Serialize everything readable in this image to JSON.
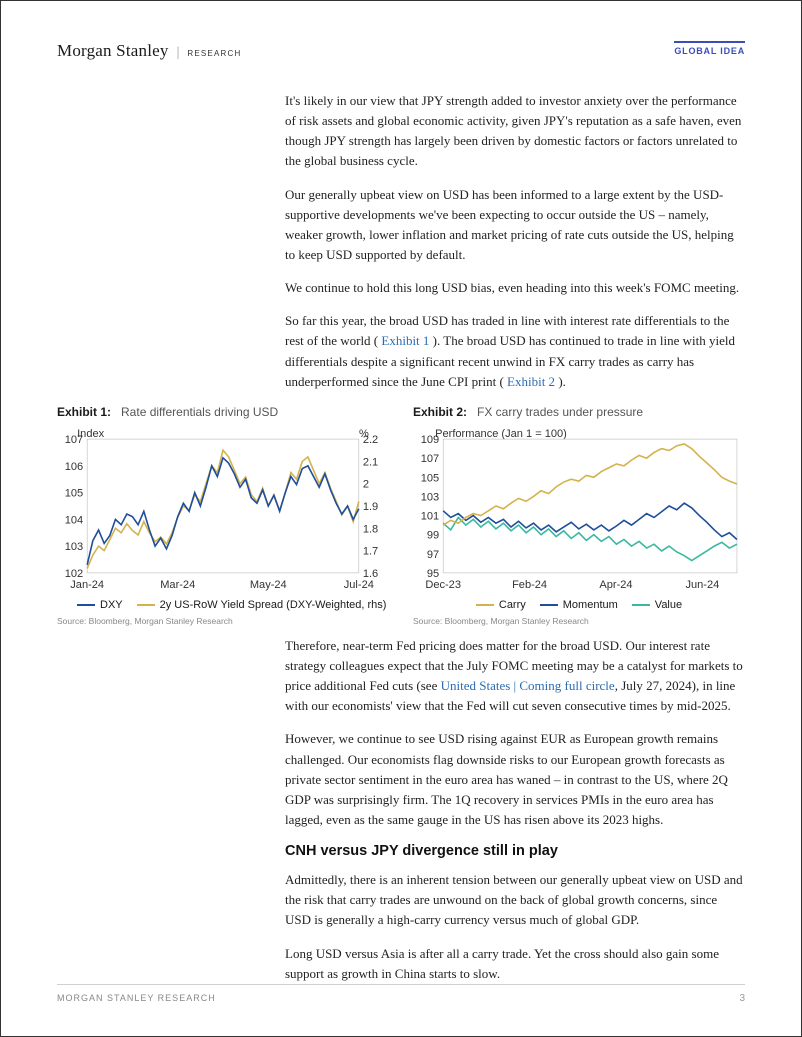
{
  "header": {
    "brand": "Morgan Stanley",
    "sub": "RESEARCH",
    "badge": "GLOBAL IDEA"
  },
  "paragraphs": {
    "p1": "It's likely in our view that JPY strength added to investor anxiety over the performance of risk assets and global economic activity, given JPY's reputation as a safe haven, even though JPY strength has largely been driven by domestic factors or factors unrelated to the global business cycle.",
    "p2": "Our generally upbeat view on USD has been informed to a large extent by the USD-supportive developments we've been expecting to occur outside the US – namely, weaker growth, lower inflation and market pricing of rate cuts outside the US, helping to keep USD supported by default.",
    "p3": "We continue to hold this long USD bias, even heading into this week's FOMC meeting.",
    "p4a": "So far this year, the broad USD has traded in line with interest rate differentials to the rest of the world (",
    "p4link1": " Exhibit 1",
    "p4b": " ). The broad USD has continued to trade in line with yield differentials despite a significant recent unwind in FX carry trades as carry has underperformed since the June CPI print (",
    "p4link2": " Exhibit 2",
    "p4c": " ).",
    "p5a": "Therefore, near-term Fed pricing does matter for the broad USD. Our interest rate strategy colleagues expect that the July FOMC meeting may be a catalyst for markets to price additional Fed cuts (see ",
    "p5link": "United States | Coming full circle",
    "p5b": ", July 27, 2024), in line with our economists' view that the Fed will cut seven consecutive times by mid-2025.",
    "p6": "However, we continue to see USD rising against EUR as European growth remains challenged. Our economists flag downside risks to our European growth forecasts as private sector sentiment in the euro area has waned – in contrast to the US, where 2Q GDP was surprisingly firm. The 1Q recovery in services PMIs in the euro area has lagged, even as the same gauge in the US has risen above its 2023 highs.",
    "h3": "CNH versus JPY divergence still in play",
    "p7": "Admittedly, there is an inherent tension between our generally upbeat view on USD and the risk that carry trades are unwound on the back of global growth concerns, since USD is generally a high-carry currency versus much of global GDP.",
    "p8": "Long USD versus Asia is after all a carry trade. Yet the cross should also gain some support as growth in China starts to slow."
  },
  "exhibit1": {
    "num": "Exhibit 1:",
    "label": "Rate differentials driving USD",
    "yleft_label": "Index",
    "yright_label": "%",
    "yleft_ticks": [
      102,
      103,
      104,
      105,
      106,
      107
    ],
    "yright_ticks": [
      1.6,
      1.7,
      1.8,
      1.9,
      2.0,
      2.1,
      2.2
    ],
    "x_ticks": [
      "Jan-24",
      "Mar-24",
      "May-24",
      "Jul-24"
    ],
    "legend": [
      {
        "name": "DXY",
        "color": "#1f4e9c"
      },
      {
        "name": "2y US-RoW Yield Spread (DXY-Weighted, rhs)",
        "color": "#d4b24c"
      }
    ],
    "series_dxy": {
      "color": "#1f4e9c",
      "values": [
        102.3,
        103.2,
        103.6,
        103.1,
        103.4,
        104.0,
        103.8,
        104.2,
        104.1,
        103.8,
        104.3,
        103.6,
        103.0,
        103.3,
        102.9,
        103.4,
        104.1,
        104.6,
        104.3,
        105.0,
        104.5,
        105.2,
        106.0,
        105.6,
        106.3,
        106.1,
        105.7,
        105.2,
        105.5,
        104.8,
        104.6,
        105.1,
        104.5,
        104.9,
        104.3,
        105.0,
        105.6,
        105.3,
        105.9,
        106.0,
        105.6,
        105.2,
        105.7,
        105.1,
        104.6,
        104.2,
        104.5,
        104.0,
        104.4
      ]
    },
    "series_spread": {
      "color": "#d4b24c",
      "values": [
        1.62,
        1.68,
        1.72,
        1.7,
        1.75,
        1.8,
        1.78,
        1.82,
        1.79,
        1.77,
        1.83,
        1.78,
        1.74,
        1.76,
        1.73,
        1.78,
        1.85,
        1.9,
        1.88,
        1.95,
        1.92,
        2.0,
        2.08,
        2.05,
        2.15,
        2.12,
        2.06,
        2.0,
        2.03,
        1.95,
        1.92,
        1.98,
        1.9,
        1.95,
        1.88,
        1.96,
        2.05,
        2.02,
        2.1,
        2.12,
        2.06,
        2.0,
        2.05,
        1.98,
        1.92,
        1.86,
        1.9,
        1.83,
        1.92
      ]
    },
    "source": "Source: Bloomberg, Morgan Stanley Research"
  },
  "exhibit2": {
    "num": "Exhibit 2:",
    "label": "FX carry trades under pressure",
    "ylabel": "Performance (Jan 1  = 100)",
    "y_ticks": [
      95,
      97,
      99,
      101,
      103,
      105,
      107,
      109
    ],
    "x_ticks": [
      "Dec-23",
      "Feb-24",
      "Apr-24",
      "Jun-24"
    ],
    "legend": [
      {
        "name": "Carry",
        "color": "#d4b24c"
      },
      {
        "name": "Momentum",
        "color": "#1f4e9c"
      },
      {
        "name": "Value",
        "color": "#3bb9a0"
      }
    ],
    "series_carry": {
      "color": "#d4b24c",
      "values": [
        100.0,
        100.5,
        100.2,
        100.8,
        101.2,
        101.0,
        101.5,
        102.0,
        101.7,
        102.3,
        102.8,
        102.5,
        103.0,
        103.6,
        103.3,
        104.0,
        104.5,
        104.8,
        104.6,
        105.2,
        105.0,
        105.6,
        106.0,
        106.4,
        106.2,
        106.8,
        107.3,
        107.0,
        107.6,
        108.0,
        107.8,
        108.3,
        108.5,
        108.0,
        107.2,
        106.5,
        105.8,
        105.0,
        104.6,
        104.3
      ]
    },
    "series_momentum": {
      "color": "#1f4e9c",
      "values": [
        101.5,
        100.8,
        101.2,
        100.5,
        101.0,
        100.3,
        100.8,
        100.2,
        100.6,
        99.8,
        100.4,
        99.7,
        100.2,
        99.5,
        100.0,
        99.3,
        99.8,
        100.3,
        99.6,
        100.1,
        99.5,
        100.0,
        99.4,
        99.9,
        100.5,
        100.0,
        100.6,
        101.2,
        100.8,
        101.4,
        102.0,
        101.6,
        102.3,
        101.8,
        101.0,
        100.3,
        99.5,
        98.8,
        99.2,
        98.5
      ]
    },
    "series_value": {
      "color": "#3bb9a0",
      "values": [
        100.2,
        99.5,
        100.8,
        100.0,
        100.6,
        99.8,
        100.4,
        99.6,
        100.2,
        99.4,
        100.0,
        99.2,
        99.8,
        99.0,
        99.6,
        98.8,
        99.4,
        98.6,
        99.2,
        98.4,
        99.0,
        98.3,
        98.8,
        98.0,
        98.5,
        97.8,
        98.3,
        97.6,
        98.0,
        97.3,
        97.8,
        97.2,
        96.8,
        96.3,
        96.8,
        97.3,
        97.8,
        98.2,
        97.6,
        98.0
      ]
    },
    "source": "Source: Bloomberg, Morgan Stanley Research"
  },
  "footer": {
    "left": "MORGAN STANLEY RESEARCH",
    "pagenum": "3"
  },
  "colors": {
    "link": "#2b6cb0",
    "badge": "#3b4db8",
    "grid": "#d8d8d8"
  }
}
